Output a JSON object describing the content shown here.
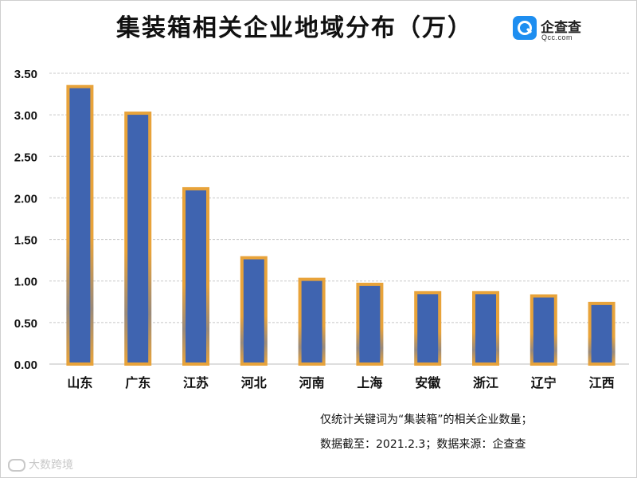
{
  "chart_data": {
    "type": "bar",
    "title": "集装箱相关企业地域分布（万）",
    "categories": [
      "山东",
      "广东",
      "江苏",
      "河北",
      "河南",
      "上海",
      "安徽",
      "浙江",
      "辽宁",
      "江西"
    ],
    "values": [
      3.34,
      3.02,
      2.11,
      1.28,
      1.02,
      0.96,
      0.86,
      0.86,
      0.82,
      0.73
    ],
    "ylim": [
      0,
      3.5
    ],
    "yticks": [
      "0.00",
      "0.50",
      "1.00",
      "1.50",
      "2.00",
      "2.50",
      "3.00",
      "3.50"
    ],
    "xlabel": "",
    "ylabel": "",
    "grid": true
  },
  "colors": {
    "bar_fill": "#3f64b0",
    "bar_outline": "#e8a33a",
    "grid": "#c8c8c8"
  },
  "logo": {
    "name": "企查查",
    "sub": "Qcc.com",
    "icon": "magnifier-icon"
  },
  "notes": [
    "仅统计关键词为“集装箱”的相关企业数量；",
    "数据截至：2021.2.3；数据来源：企查查"
  ],
  "watermark": "大数跨境"
}
